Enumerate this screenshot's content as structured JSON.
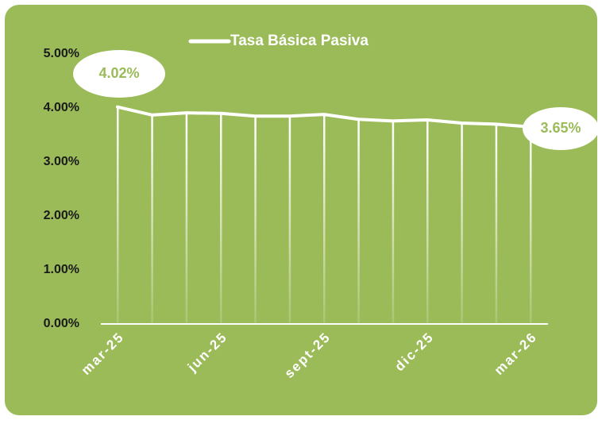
{
  "chart_data": {
    "type": "line",
    "categories": [
      "mar-25",
      null,
      null,
      "jun-25",
      null,
      null,
      "sept-25",
      null,
      null,
      "dic-25",
      null,
      null,
      "mar-26"
    ],
    "series": [
      {
        "name": "Tasa Básica Pasiva",
        "color": "#ffffff",
        "values": [
          4.02,
          3.87,
          3.91,
          3.9,
          3.85,
          3.85,
          3.88,
          3.79,
          3.76,
          3.78,
          3.72,
          3.7,
          3.65
        ],
        "value_labels": [
          "4.02%",
          null,
          null,
          null,
          null,
          null,
          null,
          null,
          null,
          null,
          null,
          null,
          "3.65%"
        ]
      }
    ],
    "ylim": [
      0,
      5
    ],
    "yticks": [
      {
        "value": 0,
        "label": "0.00%"
      },
      {
        "value": 1,
        "label": "1.00%"
      },
      {
        "value": 2,
        "label": "2.00%"
      },
      {
        "value": 3,
        "label": "3.00%"
      },
      {
        "value": 4,
        "label": "4.00%"
      },
      {
        "value": 5,
        "label": "5.00%"
      }
    ],
    "background": "#9bbb59",
    "label_color": "#9bbb59"
  }
}
